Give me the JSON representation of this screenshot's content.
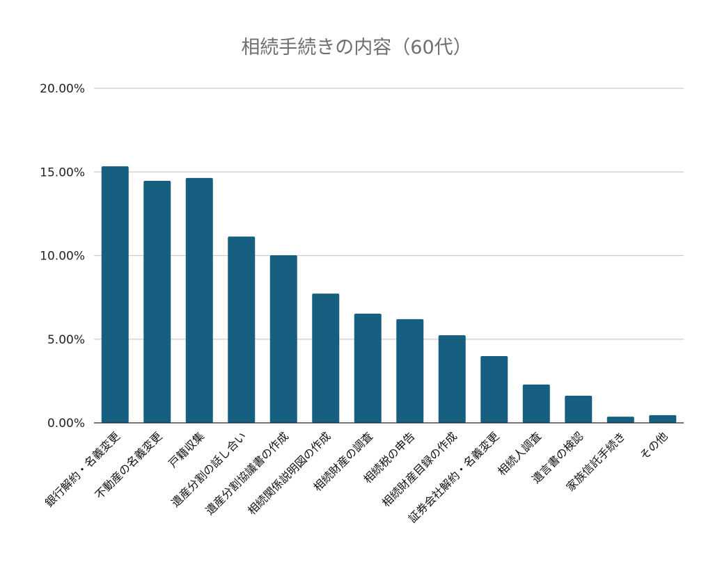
{
  "chart_data": {
    "type": "bar",
    "title": "相続手続きの内容（60代）",
    "xlabel": "",
    "ylabel": "",
    "ylim": [
      0,
      20
    ],
    "yticks": [
      "0.00%",
      "5.00%",
      "10.00%",
      "15.00%",
      "20.00%"
    ],
    "ytick_values": [
      0,
      5,
      10,
      15,
      20
    ],
    "grid": true,
    "bar_color": "#175f80",
    "categories": [
      "銀行解約・名義変更",
      "不動産の名義変更",
      "戸籍収集",
      "遺産分割の話し合い",
      "遺産分割協議書の作成",
      "相続関係説明図の作成",
      "相続財産の調査",
      "相続税の申告",
      "相続財産目録の作成",
      "証券会社解約・名義変更",
      "相続人調査",
      "遺言書の検認",
      "家族信託手続き",
      "その他"
    ],
    "values": [
      15.34,
      14.47,
      14.64,
      11.14,
      10.02,
      7.73,
      6.53,
      6.2,
      5.24,
      3.99,
      2.29,
      1.62,
      0.37,
      0.46
    ]
  }
}
